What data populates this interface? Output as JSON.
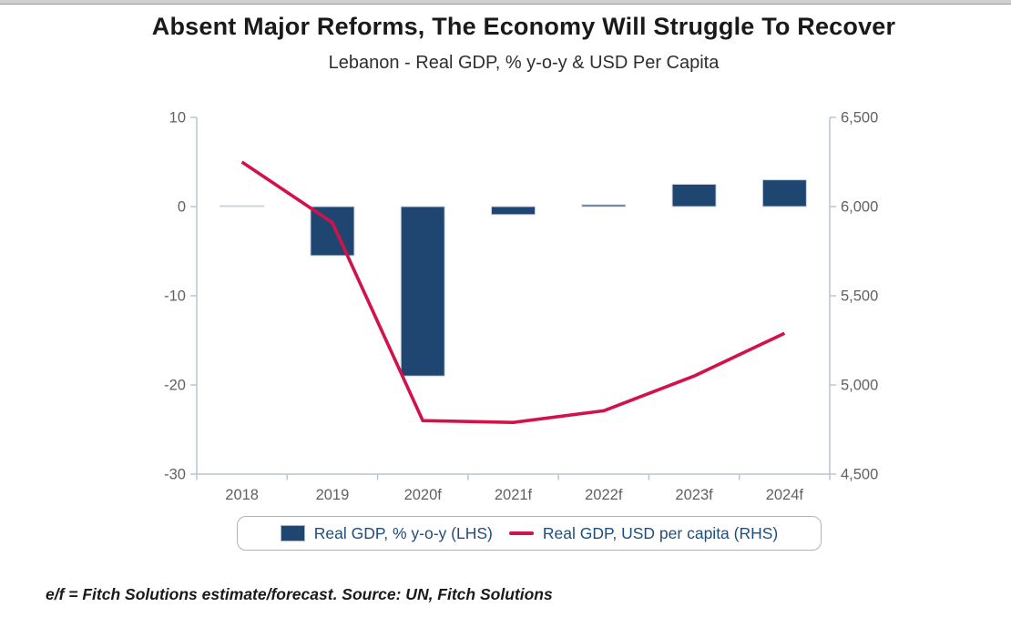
{
  "page": {
    "title": "Absent Major Reforms, The Economy Will Struggle To Recover",
    "subtitle": "Lebanon - Real GDP, % y-o-y & USD Per Capita",
    "source_note": "e/f = Fitch Solutions estimate/forecast. Source: UN, Fitch Solutions"
  },
  "legend": {
    "bar_label": "Real GDP, % y-o-y (LHS)",
    "line_label": "Real GDP, USD per capita (RHS)"
  },
  "colors": {
    "bar_fill": "#1F4571",
    "bar_stroke": "#C9D4DC",
    "line": "#D2124A",
    "axis": "#B6C7D3",
    "tick_label": "#616161",
    "legend_text": "#1F4E79"
  },
  "chart_data": {
    "type": "bar+line combo",
    "title": "Absent Major Reforms, The Economy Will Struggle To Recover",
    "subtitle": "Lebanon - Real GDP, % y-o-y & USD Per Capita",
    "categories": [
      "2018",
      "2019",
      "2020f",
      "2021f",
      "2022f",
      "2023f",
      "2024f"
    ],
    "series": [
      {
        "name": "Real GDP, % y-o-y (LHS)",
        "type": "bar",
        "axis": "left",
        "values": [
          0.1,
          -5.5,
          -19.0,
          -0.9,
          0.2,
          2.5,
          3.0
        ]
      },
      {
        "name": "Real GDP, USD per capita (RHS)",
        "type": "line",
        "axis": "right",
        "values": [
          6250,
          5910,
          4800,
          4790,
          4855,
          5050,
          5290
        ]
      }
    ],
    "left_axis": {
      "label": "Real GDP, % y-o-y",
      "min": -30,
      "max": 10,
      "ticks": [
        10,
        0,
        -10,
        -20,
        -30
      ]
    },
    "right_axis": {
      "label": "Real GDP, USD per capita",
      "min": 4500,
      "max": 6500,
      "ticks": [
        6500,
        6000,
        5500,
        5000,
        4500
      ],
      "tick_labels": [
        "6,500",
        "6,000",
        "5,500",
        "5,000",
        "4,500"
      ]
    },
    "grid": false,
    "legend_position": "bottom"
  }
}
